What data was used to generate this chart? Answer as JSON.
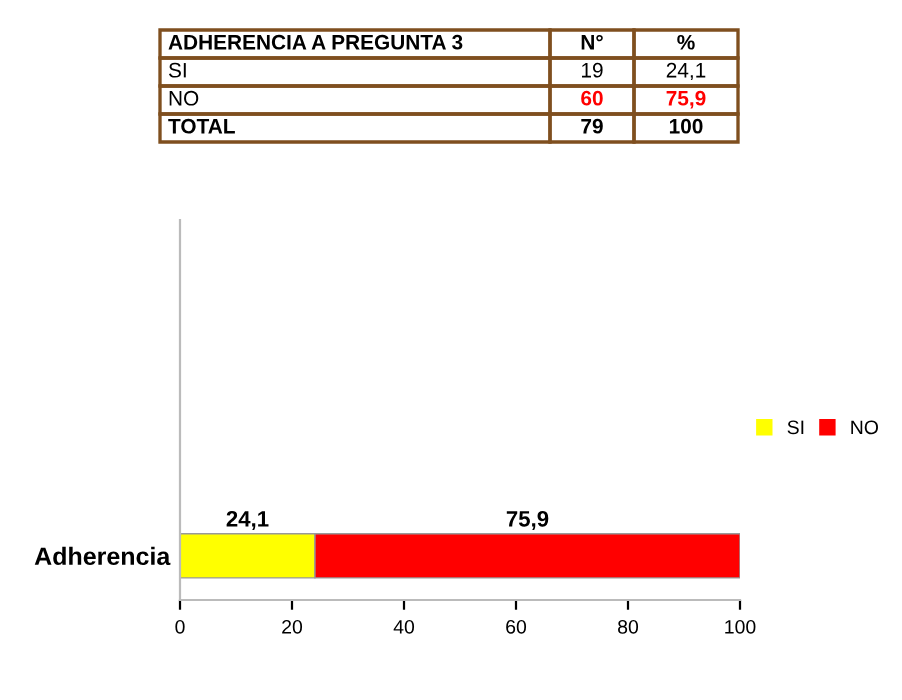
{
  "chart_data": {
    "type": "bar",
    "orientation": "horizontal",
    "stacked": true,
    "categories": [
      "Adherencia"
    ],
    "series": [
      {
        "name": "SI",
        "color": "#ffff00",
        "values": [
          24.1
        ],
        "value_labels": [
          "24,1"
        ]
      },
      {
        "name": "NO",
        "color": "#ff0000",
        "values": [
          75.9
        ],
        "value_labels": [
          "75,9"
        ]
      }
    ],
    "xlim": [
      0,
      100
    ],
    "xticks": [
      0,
      20,
      40,
      60,
      80,
      100
    ],
    "legend": "right",
    "grid": false,
    "annotations": [
      "ADHERENCIA A PREGUNTA 3",
      "N°",
      "%",
      "SI",
      "19",
      "24,1",
      "NO",
      "60",
      "75,9",
      "TOTAL",
      "79",
      "100"
    ]
  }
}
